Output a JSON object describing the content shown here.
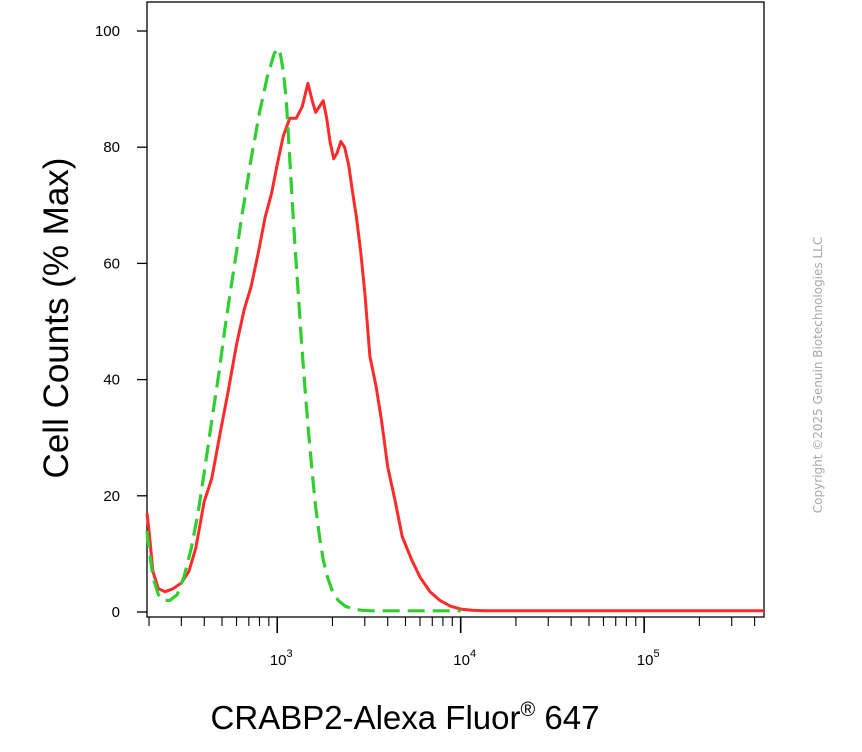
{
  "chart_data": {
    "type": "line",
    "title": "",
    "xlabel_main": "CRABP2-Alexa Fluor",
    "xlabel_sup": "®",
    "xlabel_tail": " 647",
    "ylabel": "Cell Counts (% Max)",
    "xscale": "log",
    "xlim": [
      195,
      450000
    ],
    "ylim": [
      0,
      100
    ],
    "yticks": [
      {
        "value": 0,
        "label": "0"
      },
      {
        "value": 20,
        "label": "20"
      },
      {
        "value": 40,
        "label": "40"
      },
      {
        "value": 60,
        "label": "60"
      },
      {
        "value": 80,
        "label": "80"
      },
      {
        "value": 100,
        "label": "100"
      }
    ],
    "xticks": [
      {
        "value": 1000,
        "base": "10",
        "exp": "3"
      },
      {
        "value": 10000,
        "base": "10",
        "exp": "4"
      },
      {
        "value": 100000,
        "base": "10",
        "exp": "5"
      }
    ],
    "grid": false,
    "legend": "none",
    "series": [
      {
        "color": "#ff2a2a",
        "style": "solid",
        "x": [
          195,
          200,
          210,
          225,
          245,
          270,
          300,
          330,
          360,
          400,
          440,
          490,
          540,
          600,
          660,
          720,
          790,
          860,
          930,
          1000,
          1080,
          1170,
          1270,
          1370,
          1470,
          1550,
          1620,
          1700,
          1780,
          1860,
          1940,
          2030,
          2120,
          2220,
          2330,
          2450,
          2580,
          2700,
          2850,
          3000,
          3200,
          3450,
          3700,
          4000,
          4400,
          4800,
          5400,
          6000,
          6800,
          7700,
          8800,
          10000,
          11500,
          13500,
          16000,
          20000,
          30000,
          60000,
          100000,
          200000,
          450000
        ],
        "y": [
          17,
          14,
          7,
          4,
          3.5,
          4,
          5,
          7,
          11,
          19,
          23,
          31,
          38,
          46,
          52,
          56,
          62,
          68,
          72,
          77,
          82,
          85,
          85,
          87,
          91,
          88,
          86,
          87,
          88,
          85,
          81,
          78,
          79,
          81,
          80,
          77,
          72,
          68,
          62,
          55,
          44,
          39,
          33,
          25,
          19,
          13,
          9,
          6,
          3.5,
          2,
          1,
          0.5,
          0.3,
          0.2,
          0.2,
          0.2,
          0.2,
          0.2,
          0.2,
          0.2,
          0.2
        ]
      },
      {
        "color": "#2fcf2f",
        "style": "dashed",
        "x": [
          195,
          200,
          210,
          225,
          240,
          260,
          285,
          310,
          340,
          370,
          400,
          440,
          480,
          520,
          560,
          600,
          640,
          680,
          720,
          760,
          800,
          840,
          880,
          920,
          960,
          1000,
          1040,
          1080,
          1120,
          1160,
          1200,
          1250,
          1300,
          1360,
          1420,
          1480,
          1550,
          1620,
          1700,
          1780,
          1880,
          2000,
          2150,
          2350,
          2600,
          2900,
          3300,
          3800,
          4500,
          5500,
          7000,
          10000
        ],
        "y": [
          14,
          11,
          6,
          3,
          2,
          2,
          3,
          6,
          11,
          17,
          24,
          33,
          41,
          49,
          56,
          62,
          68,
          73,
          78,
          82,
          86,
          89,
          92,
          94,
          96,
          97,
          96,
          93,
          88,
          80,
          72,
          63,
          55,
          46,
          38,
          31,
          24,
          18,
          13,
          9,
          6,
          3.5,
          2,
          1,
          0.5,
          0.3,
          0.2,
          0.2,
          0.2,
          0.2,
          0.2,
          0.2
        ]
      }
    ]
  },
  "copyright": "Copyright ©2025 Genuin Biotechnologies LLC"
}
